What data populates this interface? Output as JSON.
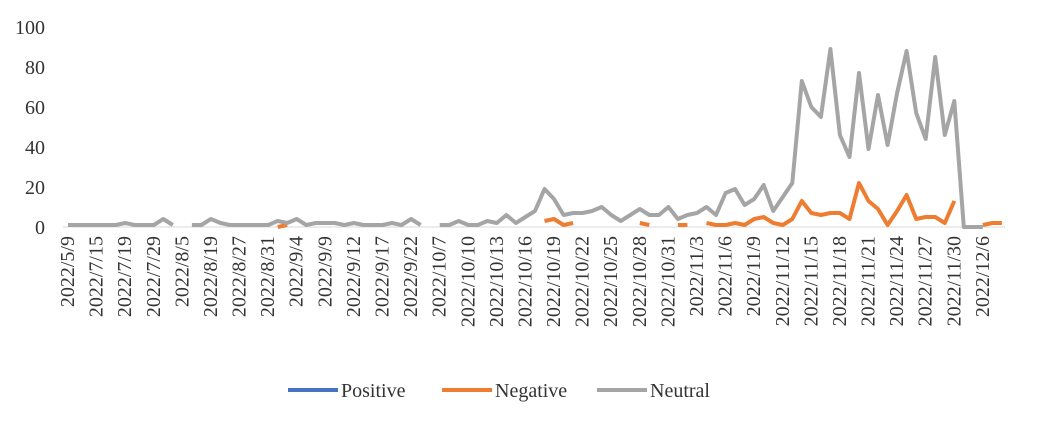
{
  "chart_data": {
    "type": "line",
    "categories": [
      "2022/5/9",
      null,
      null,
      "2022/7/15",
      null,
      null,
      "2022/7/19",
      null,
      null,
      "2022/7/29",
      null,
      null,
      "2022/8/5",
      null,
      null,
      "2022/8/19",
      null,
      null,
      "2022/8/27",
      null,
      null,
      "2022/8/31",
      null,
      null,
      "2022/9/4",
      null,
      null,
      "2022/9/9",
      null,
      null,
      "2022/9/12",
      null,
      null,
      "2022/9/17",
      null,
      null,
      "2022/9/22",
      null,
      null,
      "2022/10/7",
      null,
      null,
      "2022/10/10",
      null,
      null,
      "2022/10/13",
      null,
      null,
      "2022/10/16",
      null,
      null,
      "2022/10/19",
      null,
      null,
      "2022/10/22",
      null,
      null,
      "2022/10/25",
      null,
      null,
      "2022/10/28",
      null,
      null,
      "2022/10/31",
      null,
      null,
      "2022/11/3",
      null,
      null,
      "2022/11/6",
      null,
      null,
      "2022/11/9",
      null,
      null,
      "2022/11/12",
      null,
      null,
      "2022/11/15",
      null,
      null,
      "2022/11/18",
      null,
      null,
      "2022/11/21",
      null,
      null,
      "2022/11/24",
      null,
      null,
      "2022/11/27",
      null,
      null,
      "2022/11/30",
      null,
      null,
      "2022/12/6",
      null,
      null
    ],
    "series": [
      {
        "name": "Positive",
        "color": "#4472c4",
        "values": [
          null,
          null,
          null,
          null,
          null,
          null,
          null,
          null,
          null,
          null,
          null,
          null,
          null,
          null,
          null,
          null,
          null,
          null,
          null,
          null,
          null,
          null,
          null,
          null,
          null,
          null,
          null,
          null,
          null,
          null,
          null,
          null,
          null,
          null,
          null,
          null,
          null,
          null,
          null,
          null,
          null,
          null,
          null,
          null,
          null,
          null,
          null,
          null,
          null,
          null,
          null,
          null,
          null,
          null,
          null,
          null,
          null,
          null,
          null,
          null,
          null,
          null,
          null,
          null,
          null,
          null,
          null,
          null,
          null,
          null,
          null,
          null,
          null,
          null,
          null,
          null,
          null,
          null,
          null,
          null,
          null,
          null,
          null,
          null,
          null,
          null,
          null,
          null,
          null,
          null,
          null,
          null,
          null,
          null,
          null,
          null,
          null,
          null,
          null
        ]
      },
      {
        "name": "Negative",
        "color": "#ed7d31",
        "values": [
          null,
          null,
          null,
          null,
          null,
          null,
          null,
          null,
          null,
          null,
          null,
          null,
          null,
          null,
          null,
          null,
          null,
          null,
          null,
          null,
          null,
          null,
          0,
          1,
          null,
          null,
          null,
          null,
          null,
          null,
          null,
          null,
          null,
          null,
          null,
          null,
          null,
          null,
          null,
          null,
          null,
          null,
          null,
          null,
          null,
          null,
          null,
          null,
          null,
          null,
          3,
          4,
          1,
          2,
          null,
          null,
          null,
          null,
          null,
          null,
          2,
          1,
          null,
          null,
          1,
          1,
          null,
          2,
          1,
          1,
          2,
          1,
          4,
          5,
          2,
          1,
          4,
          13,
          7,
          6,
          7,
          7,
          4,
          22,
          13,
          9,
          1,
          8,
          16,
          4,
          5,
          5,
          2,
          13,
          null,
          null,
          1,
          2,
          2
        ]
      },
      {
        "name": "Neutral",
        "color": "#a5a5a5",
        "values": [
          1,
          1,
          1,
          1,
          1,
          1,
          2,
          1,
          1,
          1,
          4,
          1,
          null,
          1,
          1,
          4,
          2,
          1,
          1,
          1,
          1,
          1,
          3,
          2,
          4,
          1,
          2,
          2,
          2,
          1,
          2,
          1,
          1,
          1,
          2,
          1,
          4,
          1,
          null,
          1,
          1,
          3,
          1,
          1,
          3,
          2,
          6,
          2,
          5,
          8,
          19,
          14,
          6,
          7,
          7,
          8,
          10,
          6,
          3,
          6,
          9,
          6,
          6,
          10,
          4,
          6,
          7,
          10,
          6,
          17,
          19,
          11,
          14,
          21,
          8,
          15,
          22,
          73,
          60,
          55,
          89,
          46,
          35,
          77,
          39,
          66,
          41,
          67,
          88,
          57,
          44,
          85,
          46,
          63,
          0,
          0,
          0,
          null,
          null
        ]
      }
    ],
    "ylim": [
      0,
      100
    ],
    "yticks": [
      0,
      20,
      40,
      60,
      80,
      100
    ],
    "legend": "bottom"
  }
}
